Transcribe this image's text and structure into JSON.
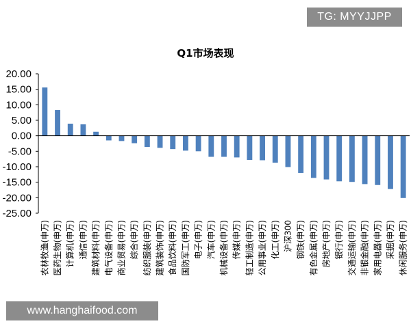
{
  "watermarks": {
    "top_right": "TG: MYYJJPP",
    "bottom_left": "www.hanghaifood.com"
  },
  "colors": {
    "bar": "#4f81bd",
    "axis": "#000000"
  },
  "chart_data": {
    "type": "bar",
    "title": "Q1市场表现",
    "xlabel": "",
    "ylabel": "",
    "ylim": [
      -25,
      20
    ],
    "y_ticks": [
      "20.00",
      "15.00",
      "10.00",
      "5.00",
      "0.00",
      "-5.00",
      "-10.00",
      "-15.00",
      "-20.00",
      "-25.00"
    ],
    "grid": false,
    "categories": [
      "农林牧渔(申万)",
      "医药生物(申万)",
      "计算机(申万)",
      "通信(申万)",
      "建筑材料(申万)",
      "电气设备(申万)",
      "商业贸易(申万)",
      "综合(申万)",
      "纺织服装(申万)",
      "建筑装饰(申万)",
      "食品饮料(申万)",
      "国防军工(申万)",
      "电子(申万)",
      "汽车(申万)",
      "机械设备(申万)",
      "传媒(申万)",
      "轻工制造(申万)",
      "公用事业(申万)",
      "化工(申万)",
      "沪深300",
      "钢铁(申万)",
      "有色金属(申万)",
      "房地产(申万)",
      "银行(申万)",
      "交通运输(申万)",
      "非银金融(申万)",
      "家用电器(申万)",
      "采掘(申万)",
      "休闲服务(申万)"
    ],
    "values": [
      15.6,
      8.3,
      3.9,
      3.7,
      1.3,
      -1.5,
      -1.7,
      -2.4,
      -3.6,
      -3.9,
      -4.3,
      -4.8,
      -5.0,
      -6.8,
      -6.8,
      -7.0,
      -7.8,
      -7.9,
      -8.7,
      -10.1,
      -12.0,
      -13.6,
      -14.1,
      -14.7,
      -14.9,
      -15.6,
      -15.9,
      -17.2,
      -20.1
    ]
  }
}
